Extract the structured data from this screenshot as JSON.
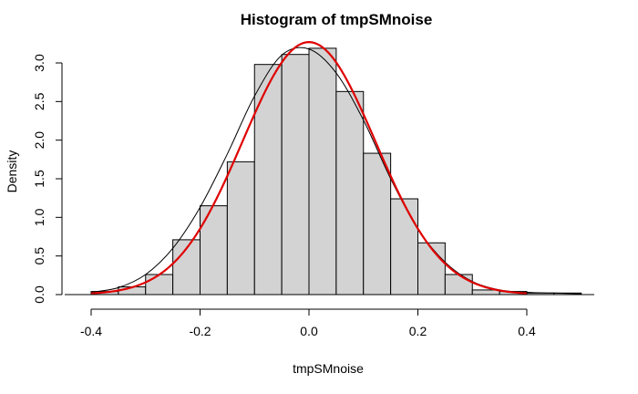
{
  "chart_data": {
    "type": "histogram",
    "title": "Histogram of tmpSMnoise",
    "xlabel": "tmpSMnoise",
    "ylabel": "Density",
    "xlim": [
      -0.4,
      0.5
    ],
    "ylim": [
      0,
      3.0
    ],
    "x_ticks": [
      "-0.4",
      "-0.2",
      "0.0",
      "0.2",
      "0.4"
    ],
    "x_tick_values": [
      -0.4,
      -0.2,
      0.0,
      0.2,
      0.4
    ],
    "y_ticks": [
      "0.0",
      "0.5",
      "1.0",
      "1.5",
      "2.0",
      "2.5",
      "3.0"
    ],
    "y_tick_values": [
      0.0,
      0.5,
      1.0,
      1.5,
      2.0,
      2.5,
      3.0
    ],
    "bins": [
      {
        "x0": -0.4,
        "x1": -0.35,
        "density": 0.04
      },
      {
        "x0": -0.35,
        "x1": -0.3,
        "density": 0.1
      },
      {
        "x0": -0.3,
        "x1": -0.25,
        "density": 0.26
      },
      {
        "x0": -0.25,
        "x1": -0.2,
        "density": 0.71
      },
      {
        "x0": -0.2,
        "x1": -0.15,
        "density": 1.15
      },
      {
        "x0": -0.15,
        "x1": -0.1,
        "density": 1.72
      },
      {
        "x0": -0.1,
        "x1": -0.05,
        "density": 2.98
      },
      {
        "x0": -0.05,
        "x1": 0.0,
        "density": 3.11
      },
      {
        "x0": 0.0,
        "x1": 0.05,
        "density": 3.19
      },
      {
        "x0": 0.05,
        "x1": 0.1,
        "density": 2.63
      },
      {
        "x0": 0.1,
        "x1": 0.15,
        "density": 1.83
      },
      {
        "x0": 0.15,
        "x1": 0.2,
        "density": 1.24
      },
      {
        "x0": 0.2,
        "x1": 0.25,
        "density": 0.67
      },
      {
        "x0": 0.25,
        "x1": 0.3,
        "density": 0.26
      },
      {
        "x0": 0.3,
        "x1": 0.35,
        "density": 0.06
      },
      {
        "x0": 0.35,
        "x1": 0.4,
        "density": 0.04
      },
      {
        "x0": 0.4,
        "x1": 0.45,
        "density": 0.02
      },
      {
        "x0": 0.45,
        "x1": 0.5,
        "density": 0.02
      }
    ],
    "series": [
      {
        "kind": "kernel-density",
        "color": "#000000",
        "x": [
          -0.4,
          -0.35,
          -0.3,
          -0.25,
          -0.2,
          -0.15,
          -0.1,
          -0.05,
          0.0,
          0.05,
          0.1,
          0.15,
          0.2,
          0.25,
          0.3,
          0.35,
          0.4,
          0.45,
          0.5
        ],
        "y": [
          0.03,
          0.09,
          0.26,
          0.6,
          1.13,
          1.82,
          2.57,
          3.1,
          3.18,
          2.87,
          2.26,
          1.5,
          0.85,
          0.42,
          0.17,
          0.06,
          0.03,
          0.02,
          0.01
        ]
      },
      {
        "kind": "normal-fit",
        "color": "#e00000",
        "mean": 0.0,
        "sd": 0.122,
        "peak": 3.27,
        "x_range": [
          -0.4,
          0.4
        ]
      }
    ],
    "grid": false,
    "legend": "none"
  }
}
